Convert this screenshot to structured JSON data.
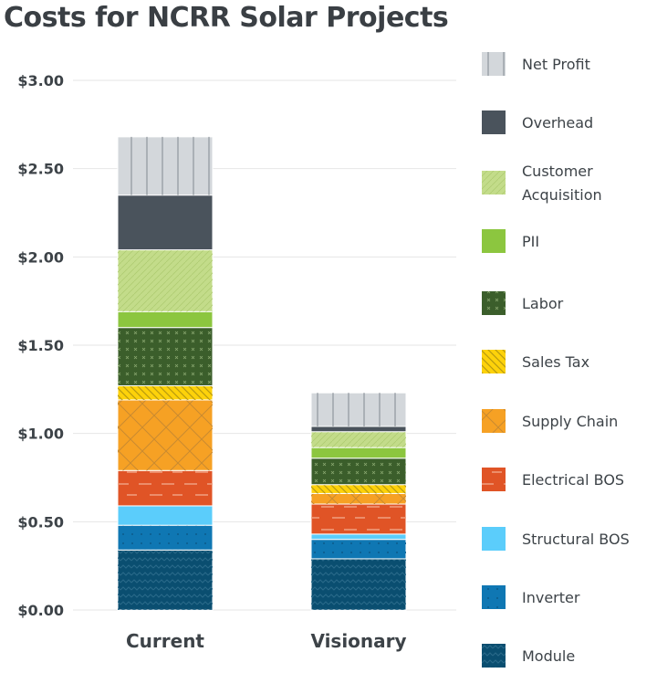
{
  "chart_data": {
    "type": "bar",
    "stacked": true,
    "title": "Costs for NCRR Solar Projects",
    "xlabel": "",
    "ylabel": "",
    "ylim": [
      0,
      3.0
    ],
    "yticks": [
      "$0.00",
      "$0.50",
      "$1.00",
      "$1.50",
      "$2.00",
      "$2.50",
      "$3.00"
    ],
    "ytick_values": [
      0,
      0.5,
      1.0,
      1.5,
      2.0,
      2.5,
      3.0
    ],
    "grid": true,
    "legend_placement": "right",
    "categories": [
      "Current",
      "Visionary"
    ],
    "series": [
      {
        "name": "Module",
        "values": [
          0.34,
          0.29
        ],
        "color": "#0a4e70"
      },
      {
        "name": "Inverter",
        "values": [
          0.14,
          0.11
        ],
        "color": "#0f77b3"
      },
      {
        "name": "Structural BOS",
        "values": [
          0.11,
          0.03
        ],
        "color": "#5bcdfb"
      },
      {
        "name": "Electrical BOS",
        "values": [
          0.2,
          0.17
        ],
        "color": "#e05426"
      },
      {
        "name": "Supply Chain",
        "values": [
          0.4,
          0.06
        ],
        "color": "#f6a124"
      },
      {
        "name": "Sales Tax",
        "values": [
          0.08,
          0.05
        ],
        "color": "#fdd20a"
      },
      {
        "name": "Labor",
        "values": [
          0.33,
          0.15
        ],
        "color": "#3b5e2b"
      },
      {
        "name": "PII",
        "values": [
          0.09,
          0.06
        ],
        "color": "#8cc63f"
      },
      {
        "name": "Customer Acquisition",
        "values": [
          0.35,
          0.09
        ],
        "color": "#c3dc8a"
      },
      {
        "name": "Overhead",
        "values": [
          0.31,
          0.03
        ],
        "color": "#4a535c"
      },
      {
        "name": "Net Profit",
        "values": [
          0.33,
          0.19
        ],
        "color": "#d3d7db"
      }
    ]
  }
}
